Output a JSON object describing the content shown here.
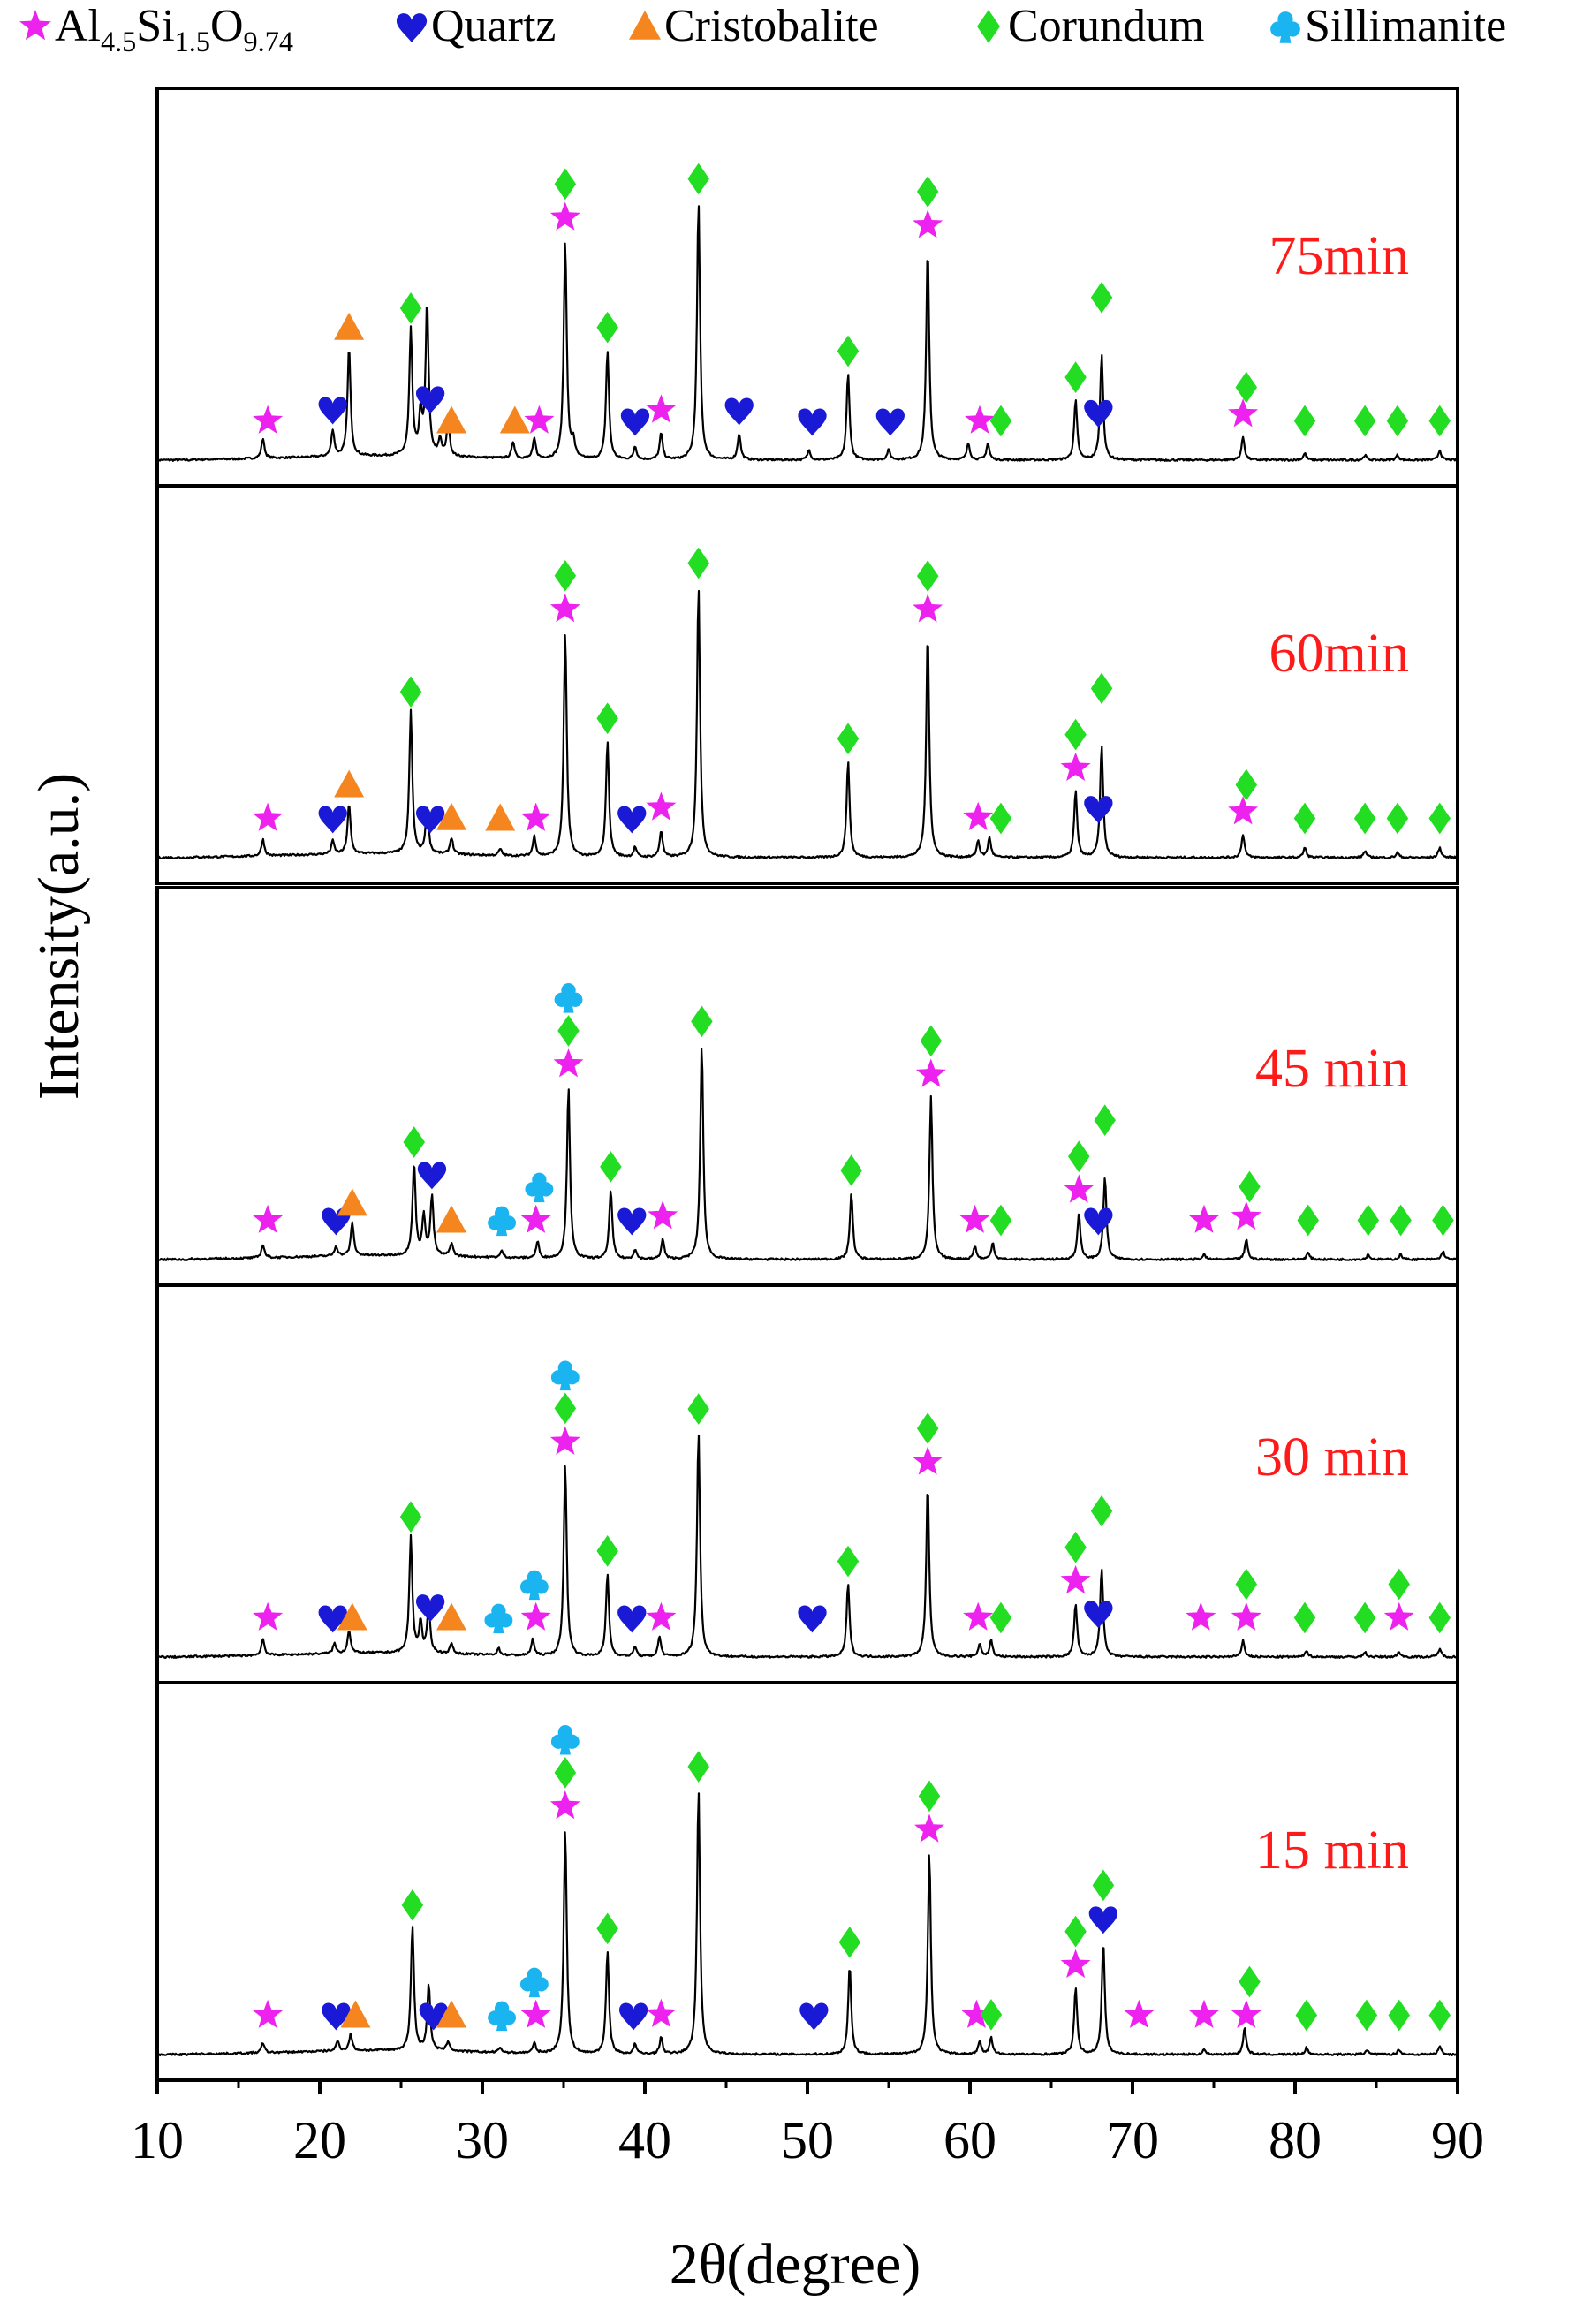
{
  "legend": {
    "items": [
      {
        "symbol": "star",
        "color": "#ee22ee",
        "label_parts": [
          "Al",
          "4.5",
          "Si",
          "1.5",
          "O",
          "9.74"
        ]
      },
      {
        "symbol": "heart",
        "color": "#1a1ad6",
        "label": "Quartz"
      },
      {
        "symbol": "triangle",
        "color": "#f5861f",
        "label": "Cristobalite"
      },
      {
        "symbol": "diamond",
        "color": "#22dd22",
        "label": "Corundum"
      },
      {
        "symbol": "club",
        "color": "#1ab4f0",
        "label": "Sillimanite"
      }
    ]
  },
  "colors": {
    "trace": "#000000",
    "panel_label": "#ff1a1a",
    "axis": "#000000"
  },
  "chart_data": {
    "type": "line",
    "xlabel": "2θ(degree)",
    "ylabel": "Intensity(a.u.)",
    "xlim": [
      10,
      90
    ],
    "xticks": [
      10,
      20,
      30,
      40,
      50,
      60,
      70,
      80,
      90
    ],
    "ylim": [
      0,
      1
    ],
    "y_ticks_shown": false,
    "grid": false,
    "legend_placement": "top",
    "panels": [
      {
        "label": "75min",
        "peaks": [
          [
            16.5,
            0.06
          ],
          [
            20.8,
            0.08
          ],
          [
            21.8,
            0.33
          ],
          [
            25.6,
            0.38
          ],
          [
            26.2,
            0.12
          ],
          [
            26.6,
            0.46
          ],
          [
            27.4,
            0.05
          ],
          [
            27.9,
            0.1
          ],
          [
            31.9,
            0.05
          ],
          [
            33.2,
            0.06
          ],
          [
            35.1,
            0.66
          ],
          [
            35.6,
            0.05
          ],
          [
            37.7,
            0.33
          ],
          [
            39.4,
            0.04
          ],
          [
            41.0,
            0.08
          ],
          [
            43.3,
            0.78
          ],
          [
            45.8,
            0.08
          ],
          [
            50.1,
            0.03
          ],
          [
            52.5,
            0.26
          ],
          [
            55.0,
            0.03
          ],
          [
            57.4,
            0.64
          ],
          [
            59.9,
            0.05
          ],
          [
            61.1,
            0.05
          ],
          [
            66.5,
            0.18
          ],
          [
            68.1,
            0.32
          ],
          [
            76.8,
            0.07
          ],
          [
            80.6,
            0.02
          ],
          [
            84.3,
            0.015
          ],
          [
            86.3,
            0.015
          ],
          [
            88.9,
            0.03
          ]
        ],
        "markers": [
          {
            "phase": "Al4.5Si1.5O9.74",
            "x": [
              16.8,
              33.5,
              35.1,
              41.0,
              57.4,
              60.6,
              76.8
            ]
          },
          {
            "phase": "Quartz",
            "x": [
              20.8,
              26.8,
              39.4,
              45.8,
              50.3,
              55.1,
              67.9
            ]
          },
          {
            "phase": "Cristobalite",
            "x": [
              21.8,
              28.1,
              32.0
            ]
          },
          {
            "phase": "Corundum",
            "x": [
              25.6,
              35.1,
              37.7,
              43.3,
              52.5,
              57.4,
              61.9,
              66.5,
              68.1,
              77.0,
              80.6,
              84.3,
              86.3,
              88.9
            ]
          }
        ]
      },
      {
        "label": "60min",
        "peaks": [
          [
            16.5,
            0.05
          ],
          [
            20.8,
            0.04
          ],
          [
            21.8,
            0.15
          ],
          [
            25.6,
            0.43
          ],
          [
            26.6,
            0.14
          ],
          [
            28.1,
            0.05
          ],
          [
            31.1,
            0.02
          ],
          [
            33.2,
            0.06
          ],
          [
            35.1,
            0.68
          ],
          [
            37.7,
            0.35
          ],
          [
            39.4,
            0.03
          ],
          [
            41.0,
            0.08
          ],
          [
            43.3,
            0.82
          ],
          [
            52.5,
            0.29
          ],
          [
            57.4,
            0.68
          ],
          [
            60.5,
            0.05
          ],
          [
            61.2,
            0.06
          ],
          [
            66.5,
            0.2
          ],
          [
            68.1,
            0.34
          ],
          [
            76.8,
            0.07
          ],
          [
            80.6,
            0.03
          ],
          [
            84.3,
            0.02
          ],
          [
            86.3,
            0.015
          ],
          [
            88.9,
            0.03
          ]
        ],
        "markers": [
          {
            "phase": "Al4.5Si1.5O9.74",
            "x": [
              16.8,
              33.3,
              35.1,
              41.0,
              57.4,
              60.5,
              66.5,
              76.8
            ]
          },
          {
            "phase": "Quartz",
            "x": [
              20.8,
              26.8,
              39.2,
              67.9
            ]
          },
          {
            "phase": "Cristobalite",
            "x": [
              21.8,
              28.1,
              31.1
            ]
          },
          {
            "phase": "Corundum",
            "x": [
              25.6,
              35.1,
              37.7,
              43.3,
              52.5,
              57.4,
              61.9,
              66.5,
              68.1,
              77.0,
              80.6,
              84.3,
              86.3,
              88.9
            ]
          }
        ]
      },
      {
        "label": "45 min",
        "peaks": [
          [
            16.5,
            0.04
          ],
          [
            21.0,
            0.03
          ],
          [
            22.0,
            0.1
          ],
          [
            25.8,
            0.28
          ],
          [
            26.4,
            0.12
          ],
          [
            26.9,
            0.18
          ],
          [
            28.1,
            0.04
          ],
          [
            31.2,
            0.02
          ],
          [
            33.4,
            0.05
          ],
          [
            35.3,
            0.52
          ],
          [
            37.9,
            0.21
          ],
          [
            39.4,
            0.03
          ],
          [
            41.1,
            0.06
          ],
          [
            43.5,
            0.65
          ],
          [
            52.7,
            0.2
          ],
          [
            57.6,
            0.49
          ],
          [
            60.3,
            0.04
          ],
          [
            61.4,
            0.05
          ],
          [
            66.7,
            0.14
          ],
          [
            68.3,
            0.25
          ],
          [
            74.4,
            0.015
          ],
          [
            77.0,
            0.06
          ],
          [
            80.8,
            0.02
          ],
          [
            84.5,
            0.015
          ],
          [
            86.5,
            0.015
          ],
          [
            89.1,
            0.025
          ]
        ],
        "markers": [
          {
            "phase": "Al4.5Si1.5O9.74",
            "x": [
              16.8,
              33.3,
              35.3,
              41.1,
              57.6,
              60.3,
              66.7,
              74.4,
              77.0
            ]
          },
          {
            "phase": "Quartz",
            "x": [
              21.0,
              26.9,
              39.2,
              67.9
            ]
          },
          {
            "phase": "Cristobalite",
            "x": [
              22.0,
              28.1
            ]
          },
          {
            "phase": "Corundum",
            "x": [
              25.8,
              35.3,
              37.9,
              43.5,
              52.7,
              57.6,
              61.9,
              66.7,
              68.3,
              77.2,
              80.8,
              84.5,
              86.5,
              89.1
            ]
          },
          {
            "phase": "Sillimanite",
            "x": [
              31.2,
              33.5,
              35.3
            ]
          }
        ]
      },
      {
        "label": "30 min",
        "peaks": [
          [
            16.5,
            0.05
          ],
          [
            20.9,
            0.03
          ],
          [
            21.8,
            0.07
          ],
          [
            25.6,
            0.35
          ],
          [
            26.2,
            0.09
          ],
          [
            26.7,
            0.14
          ],
          [
            28.1,
            0.03
          ],
          [
            31.0,
            0.02
          ],
          [
            33.1,
            0.05
          ],
          [
            35.1,
            0.58
          ],
          [
            37.7,
            0.25
          ],
          [
            39.4,
            0.03
          ],
          [
            40.9,
            0.06
          ],
          [
            43.3,
            0.68
          ],
          [
            52.5,
            0.22
          ],
          [
            57.4,
            0.52
          ],
          [
            60.6,
            0.04
          ],
          [
            61.3,
            0.05
          ],
          [
            66.5,
            0.16
          ],
          [
            68.1,
            0.27
          ],
          [
            76.8,
            0.05
          ],
          [
            80.7,
            0.02
          ],
          [
            84.3,
            0.015
          ],
          [
            86.4,
            0.015
          ],
          [
            88.9,
            0.025
          ]
        ],
        "markers": [
          {
            "phase": "Al4.5Si1.5O9.74",
            "x": [
              16.8,
              33.3,
              35.1,
              41.0,
              57.4,
              60.5,
              66.5,
              74.2,
              77.0,
              86.4
            ]
          },
          {
            "phase": "Quartz",
            "x": [
              20.8,
              26.8,
              39.2,
              50.3,
              67.9
            ]
          },
          {
            "phase": "Cristobalite",
            "x": [
              22.0,
              28.1
            ]
          },
          {
            "phase": "Corundum",
            "x": [
              25.6,
              35.1,
              37.7,
              43.3,
              52.5,
              57.4,
              61.9,
              66.5,
              68.1,
              77.0,
              80.6,
              84.3,
              86.4,
              88.9
            ]
          },
          {
            "phase": "Sillimanite",
            "x": [
              31.0,
              33.2,
              35.1
            ]
          }
        ]
      },
      {
        "label": "15 min",
        "peaks": [
          [
            16.5,
            0.03
          ],
          [
            21.1,
            0.03
          ],
          [
            21.9,
            0.05
          ],
          [
            25.7,
            0.38
          ],
          [
            26.7,
            0.2
          ],
          [
            27.9,
            0.03
          ],
          [
            31.1,
            0.015
          ],
          [
            33.2,
            0.03
          ],
          [
            35.1,
            0.68
          ],
          [
            37.7,
            0.31
          ],
          [
            39.4,
            0.03
          ],
          [
            41.0,
            0.05
          ],
          [
            43.3,
            0.8
          ],
          [
            52.6,
            0.27
          ],
          [
            57.5,
            0.61
          ],
          [
            60.6,
            0.04
          ],
          [
            61.3,
            0.05
          ],
          [
            66.5,
            0.2
          ],
          [
            68.2,
            0.34
          ],
          [
            74.4,
            0.015
          ],
          [
            76.9,
            0.08
          ],
          [
            80.7,
            0.02
          ],
          [
            84.4,
            0.015
          ],
          [
            86.4,
            0.015
          ],
          [
            88.9,
            0.025
          ]
        ],
        "markers": [
          {
            "phase": "Al4.5Si1.5O9.74",
            "x": [
              16.8,
              33.3,
              35.1,
              41.0,
              57.5,
              60.4,
              66.5,
              70.4,
              74.4,
              77.0
            ]
          },
          {
            "phase": "Quartz",
            "x": [
              21.0,
              27.0,
              39.3,
              50.4,
              68.2
            ]
          },
          {
            "phase": "Cristobalite",
            "x": [
              22.2,
              28.1
            ]
          },
          {
            "phase": "Corundum",
            "x": [
              25.7,
              35.1,
              37.7,
              43.3,
              52.6,
              57.5,
              61.3,
              66.5,
              68.2,
              77.2,
              80.7,
              84.4,
              86.4,
              88.9
            ]
          },
          {
            "phase": "Sillimanite",
            "x": [
              31.2,
              33.2,
              35.1
            ]
          }
        ]
      }
    ]
  }
}
